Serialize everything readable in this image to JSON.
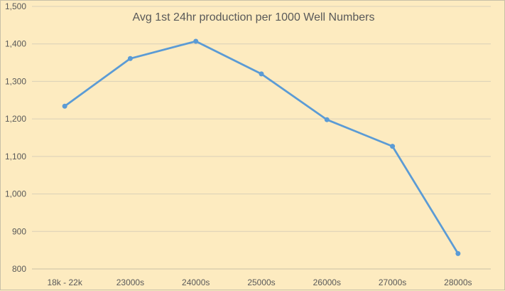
{
  "chart_data": {
    "type": "line",
    "title": "Avg 1st 24hr production per 1000 Well Numbers",
    "xlabel": "",
    "ylabel": "",
    "categories": [
      "18k - 22k",
      "23000s",
      "24000s",
      "25000s",
      "26000s",
      "27000s",
      "28000s"
    ],
    "series": [
      {
        "values": [
          1234,
          1361,
          1407,
          1320,
          1198,
          1127,
          841
        ]
      }
    ],
    "ylim": [
      800,
      1500
    ],
    "yticks": [
      800,
      900,
      1000,
      1100,
      1200,
      1300,
      1400,
      1500
    ],
    "ytick_labels": [
      "800",
      "900",
      "1,000",
      "1,100",
      "1,200",
      "1,300",
      "1,400",
      "1,500"
    ],
    "grid": true,
    "legend": "none",
    "colors": {
      "line": "#5b9bd5",
      "background": "#fdebc0"
    }
  }
}
